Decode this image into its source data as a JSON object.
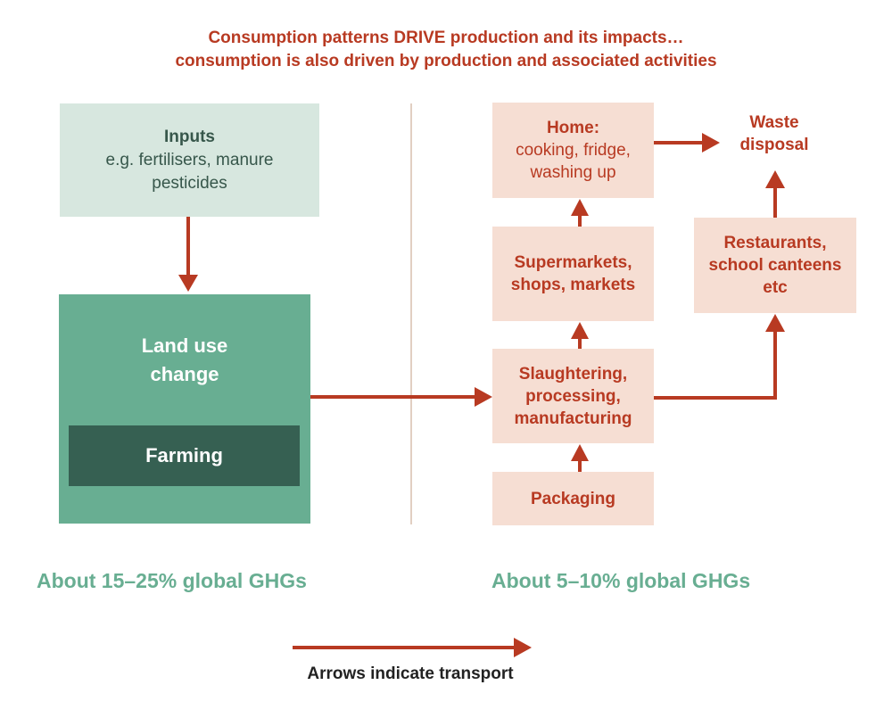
{
  "title": {
    "line1": "Consumption patterns DRIVE production and its impacts…",
    "line2": "consumption is also driven by production and associated activities"
  },
  "inputs": {
    "heading": "Inputs",
    "line1": "e.g. fertilisers, manure",
    "line2": "pesticides"
  },
  "land_use": {
    "line1": "Land use",
    "line2": "change"
  },
  "farming": {
    "label": "Farming"
  },
  "home": {
    "heading": "Home:",
    "line1": "cooking, fridge,",
    "line2": "washing up"
  },
  "waste": {
    "line1": "Waste",
    "line2": "disposal"
  },
  "supermarkets": {
    "line1": "Supermarkets,",
    "line2": "shops, markets"
  },
  "restaurants": {
    "line1": "Restaurants,",
    "line2": "school canteens",
    "line3": "etc"
  },
  "slaughtering": {
    "line1": "Slaughtering,",
    "line2": "processing,",
    "line3": "manufacturing"
  },
  "packaging": {
    "label": "Packaging"
  },
  "footer": {
    "left_pct": "About 15–25% global GHGs",
    "right_pct": "About 5–10% global GHGs"
  },
  "legend": {
    "label": "Arrows indicate transport"
  },
  "colors": {
    "arrow": "#b83a22",
    "title": "#b83a22",
    "inputs_bg": "#d7e7df",
    "land_bg": "#68ae92",
    "farming_bg": "#366052",
    "stage_bg": "#f6ded3",
    "pct_text": "#68ae92"
  }
}
